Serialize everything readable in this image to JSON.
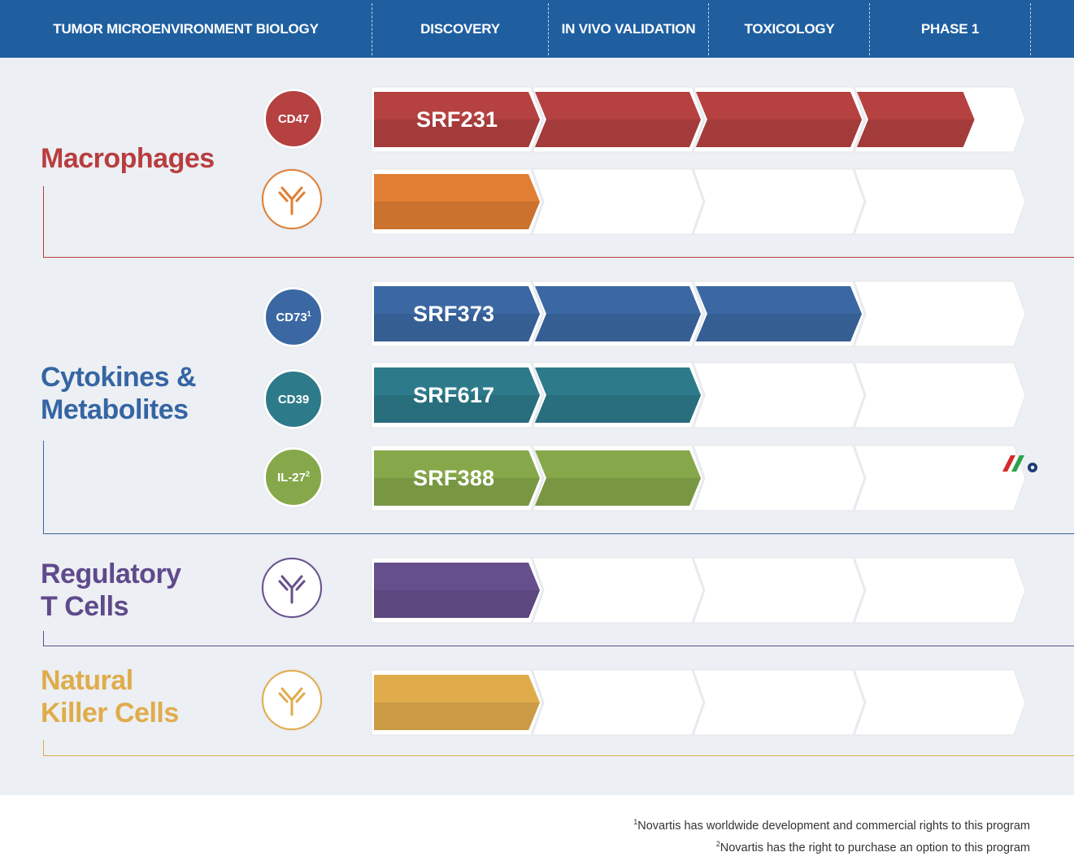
{
  "header": {
    "columns": [
      {
        "label": "TUMOR MICROENVIRONMENT BIOLOGY"
      },
      {
        "label": "DISCOVERY"
      },
      {
        "label": "IN VIVO VALIDATION"
      },
      {
        "label": "TOXICOLOGY"
      },
      {
        "label": "PHASE 1"
      }
    ]
  },
  "categories": [
    {
      "title": "Macrophages",
      "color": "#b83d3f"
    },
    {
      "title": "Cytokines &\nMetabolites",
      "color": "#3565a3"
    },
    {
      "title": "Regulatory\nT Cells",
      "color": "#5f4a8b"
    },
    {
      "title": "Natural\nKiller Cells",
      "color": "#e0ac4b"
    }
  ],
  "programs": [
    {
      "target": "CD47",
      "target_sup": "",
      "icon": "circle",
      "drug": "SRF231",
      "stage_progress": 3.7,
      "color": "#b54141"
    },
    {
      "target": "",
      "target_sup": "",
      "icon": "antibody-icon",
      "drug": "",
      "stage_progress": 1,
      "color": "#e07f33"
    },
    {
      "target": "CD73",
      "target_sup": "1",
      "icon": "circle",
      "drug": "SRF373",
      "stage_progress": 3,
      "color": "#3b68a3"
    },
    {
      "target": "CD39",
      "target_sup": "",
      "icon": "circle",
      "drug": "SRF617",
      "stage_progress": 2,
      "color": "#2d7a8a"
    },
    {
      "target": "IL-27",
      "target_sup": "2",
      "icon": "circle",
      "drug": "SRF388",
      "stage_progress": 2,
      "color": "#86a84a"
    },
    {
      "target": "",
      "target_sup": "",
      "icon": "antibody-icon",
      "drug": "",
      "stage_progress": 1,
      "color": "#664f8d"
    },
    {
      "target": "",
      "target_sup": "",
      "icon": "antibody-icon",
      "drug": "",
      "stage_progress": 1,
      "color": "#e0ac4b"
    }
  ],
  "footnotes": [
    {
      "marker": "1",
      "text": "Novartis has worldwide development and commercial rights to this program"
    },
    {
      "marker": "2",
      "text": "Novartis has the right to purchase an option to this program"
    }
  ]
}
